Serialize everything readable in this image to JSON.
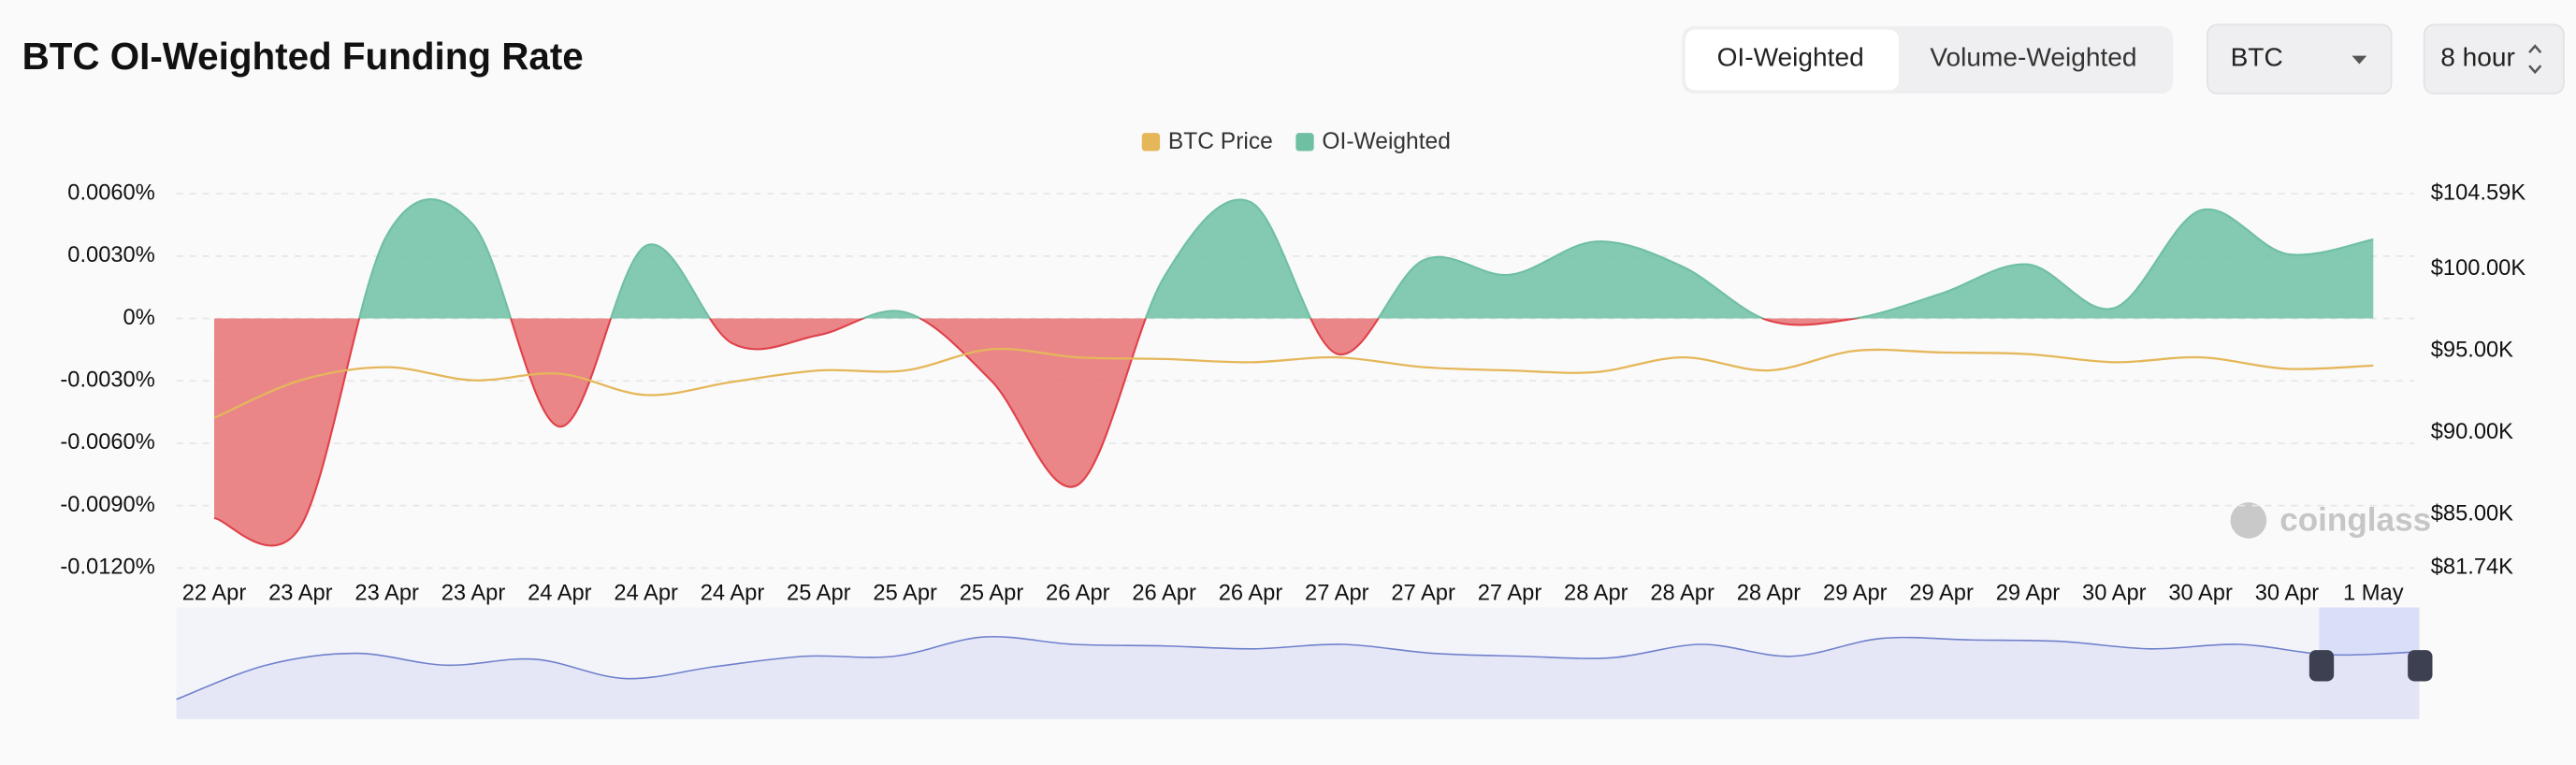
{
  "chart_data": {
    "type": "area",
    "title": "BTC OI-Weighted Funding Rate",
    "categories": [
      "22 Apr",
      "23 Apr",
      "23 Apr",
      "23 Apr",
      "24 Apr",
      "24 Apr",
      "24 Apr",
      "25 Apr",
      "25 Apr",
      "25 Apr",
      "26 Apr",
      "26 Apr",
      "26 Apr",
      "27 Apr",
      "27 Apr",
      "27 Apr",
      "28 Apr",
      "28 Apr",
      "28 Apr",
      "29 Apr",
      "29 Apr",
      "29 Apr",
      "30 Apr",
      "30 Apr",
      "30 Apr",
      "1 May"
    ],
    "series": [
      {
        "name": "BTC Price",
        "type": "line",
        "axis": "y2",
        "color": "#e5b75a",
        "values": [
          90900,
          93200,
          94000,
          93200,
          93600,
          92300,
          93100,
          93800,
          93800,
          95100,
          94600,
          94500,
          94300,
          94600,
          94000,
          93800,
          93700,
          94600,
          93800,
          95000,
          94900,
          94800,
          94300,
          94600,
          93900,
          94100
        ]
      },
      {
        "name": "OI-Weighted",
        "type": "area",
        "color": "#6fbfa3",
        "negative_color": "#e8797b",
        "values": [
          -0.0096,
          -0.01,
          0.004,
          0.0045,
          -0.0052,
          0.0035,
          -0.0012,
          -0.0008,
          0.0003,
          -0.003,
          -0.008,
          0.002,
          0.0056,
          -0.0017,
          0.0028,
          0.0021,
          0.0037,
          0.0025,
          -0.0001,
          0.0,
          0.0012,
          0.0026,
          0.0005,
          0.0052,
          0.0031,
          0.0038
        ]
      }
    ],
    "ylim": [
      -0.012,
      0.006
    ],
    "yticks": [
      {
        "value": -0.012,
        "label": "-0.0120%"
      },
      {
        "value": -0.009,
        "label": "-0.0090%"
      },
      {
        "value": -0.006,
        "label": "-0.0060%"
      },
      {
        "value": -0.003,
        "label": "-0.0030%"
      },
      {
        "value": 0,
        "label": "0%"
      },
      {
        "value": 0.003,
        "label": "0.0030%"
      },
      {
        "value": 0.006,
        "label": "0.0060%"
      }
    ],
    "y2lim": [
      81740,
      104590
    ],
    "y2ticks": [
      {
        "value": 81740,
        "label": "$81.74K"
      },
      {
        "value": 85000,
        "label": "$85.00K"
      },
      {
        "value": 90000,
        "label": "$90.00K"
      },
      {
        "value": 95000,
        "label": "$95.00K"
      },
      {
        "value": 100000,
        "label": "$100.00K"
      },
      {
        "value": 104590,
        "label": "$104.59K"
      }
    ],
    "grid": true,
    "legend": "top",
    "watermark": "coinglass"
  },
  "controls": {
    "weighting": [
      "OI-Weighted",
      "Volume-Weighted"
    ],
    "coin": "BTC",
    "interval": "8 hour"
  }
}
